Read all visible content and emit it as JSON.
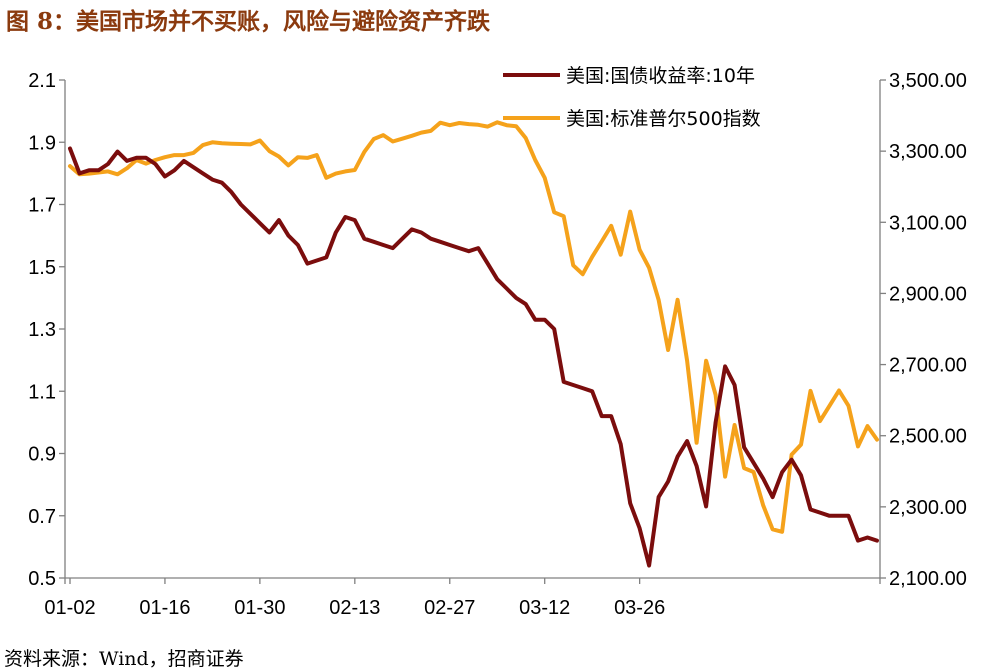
{
  "title": "图 8：美国市场并不买账，风险与避险资产齐跌",
  "source": "资料来源：Wind，招商证券",
  "chart_data": {
    "type": "line",
    "x_tick_labels": [
      "01-02",
      "01-16",
      "01-30",
      "02-13",
      "02-27",
      "03-12",
      "03-26"
    ],
    "y_left": {
      "ticks": [
        "2.1",
        "1.9",
        "1.7",
        "1.5",
        "1.3",
        "1.1",
        "0.9",
        "0.7",
        "0.5"
      ],
      "range": [
        0.5,
        2.1
      ]
    },
    "y_right": {
      "ticks": [
        "3,500.00",
        "3,300.00",
        "3,100.00",
        "2,900.00",
        "2,700.00",
        "2,500.00",
        "2,300.00",
        "2,100.00"
      ],
      "range": [
        2100,
        3500
      ]
    },
    "series": [
      {
        "name": "美国:国债收益率:10年",
        "color": "#7B0D0D",
        "axis": "left",
        "values": [
          1.88,
          1.8,
          1.81,
          1.81,
          1.83,
          1.87,
          1.84,
          1.85,
          1.85,
          1.83,
          1.79,
          1.81,
          1.84,
          1.82,
          1.8,
          1.78,
          1.77,
          1.74,
          1.7,
          1.67,
          1.64,
          1.61,
          1.65,
          1.6,
          1.57,
          1.51,
          1.52,
          1.53,
          1.61,
          1.66,
          1.65,
          1.59,
          1.58,
          1.57,
          1.56,
          1.59,
          1.62,
          1.61,
          1.59,
          1.58,
          1.57,
          1.56,
          1.55,
          1.56,
          1.51,
          1.46,
          1.43,
          1.4,
          1.38,
          1.33,
          1.33,
          1.3,
          1.13,
          1.12,
          1.11,
          1.1,
          1.02,
          1.02,
          0.93,
          0.74,
          0.66,
          0.54,
          0.76,
          0.81,
          0.89,
          0.94,
          0.86,
          0.73,
          1.0,
          1.18,
          1.12,
          0.92,
          0.87,
          0.82,
          0.76,
          0.84,
          0.88,
          0.83,
          0.72,
          0.71,
          0.7,
          0.7,
          0.7,
          0.62,
          0.63,
          0.62
        ]
      },
      {
        "name": "美国:标准普尔500指数",
        "color": "#F5A21B",
        "axis": "right",
        "values": [
          3258,
          3235,
          3237,
          3240,
          3243,
          3235,
          3252,
          3275,
          3265,
          3275,
          3283,
          3289,
          3289,
          3295,
          3317,
          3325,
          3322,
          3321,
          3320,
          3319,
          3330,
          3300,
          3285,
          3260,
          3283,
          3281,
          3289,
          3225,
          3237,
          3243,
          3247,
          3298,
          3334,
          3345,
          3327,
          3335,
          3343,
          3352,
          3357,
          3380,
          3373,
          3379,
          3376,
          3374,
          3369,
          3381,
          3373,
          3370,
          3337,
          3275,
          3225,
          3128,
          3117,
          2979,
          2954,
          3003,
          3046,
          3090,
          3009,
          3130,
          3023,
          2972,
          2882,
          2741,
          2882,
          2711,
          2480,
          2711,
          2615,
          2385,
          2530,
          2409,
          2398,
          2305,
          2237,
          2230,
          2447,
          2475,
          2626,
          2541,
          2584,
          2627,
          2584,
          2470,
          2527,
          2489
        ]
      }
    ],
    "grid": false,
    "legend_position": "top-right"
  }
}
